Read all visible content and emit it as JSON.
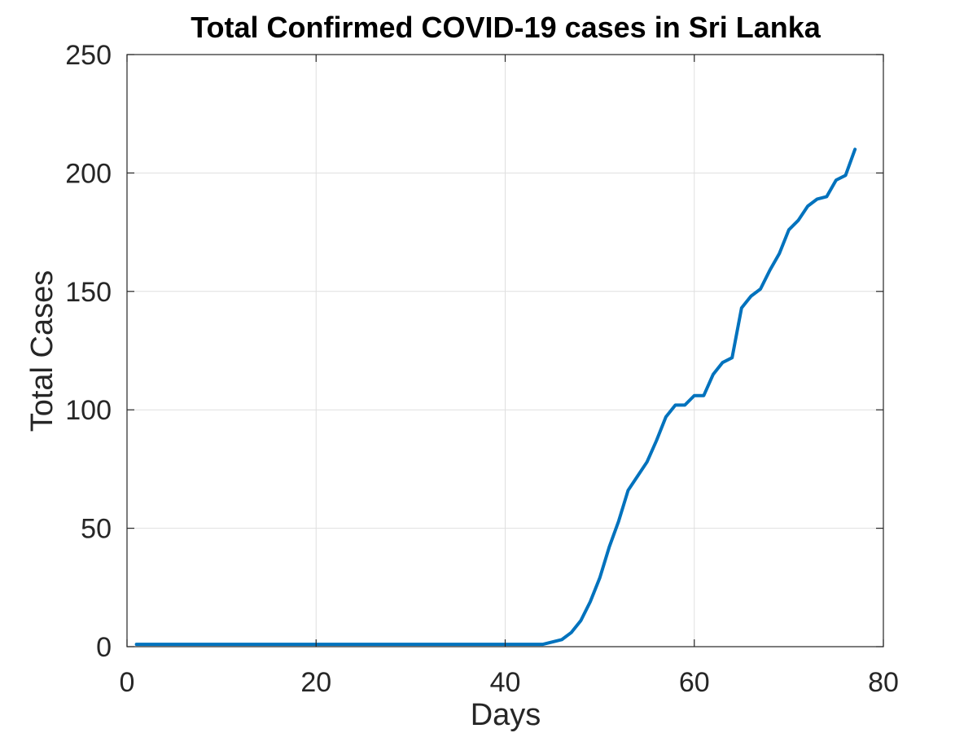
{
  "chart_data": {
    "type": "line",
    "title": "Total Confirmed COVID-19 cases in Sri Lanka",
    "xlabel": "Days",
    "ylabel": "Total Cases",
    "xlim": [
      0,
      80
    ],
    "ylim": [
      0,
      250
    ],
    "xticks": [
      0,
      20,
      40,
      60,
      80
    ],
    "yticks": [
      0,
      50,
      100,
      150,
      200,
      250
    ],
    "grid": true,
    "legend": "none",
    "series": [
      {
        "color": "#0072bd",
        "x": [
          1,
          2,
          3,
          4,
          5,
          6,
          7,
          8,
          9,
          10,
          11,
          12,
          13,
          14,
          15,
          16,
          17,
          18,
          19,
          20,
          21,
          22,
          23,
          24,
          25,
          26,
          27,
          28,
          29,
          30,
          31,
          32,
          33,
          34,
          35,
          36,
          37,
          38,
          39,
          40,
          41,
          42,
          43,
          44,
          45,
          46,
          47,
          48,
          49,
          50,
          51,
          52,
          53,
          54,
          55,
          56,
          57,
          58,
          59,
          60,
          61,
          62,
          63,
          64,
          65,
          66,
          67,
          68,
          69,
          70,
          71,
          72,
          73,
          74,
          75,
          76,
          77
        ],
        "y": [
          1,
          1,
          1,
          1,
          1,
          1,
          1,
          1,
          1,
          1,
          1,
          1,
          1,
          1,
          1,
          1,
          1,
          1,
          1,
          1,
          1,
          1,
          1,
          1,
          1,
          1,
          1,
          1,
          1,
          1,
          1,
          1,
          1,
          1,
          1,
          1,
          1,
          1,
          1,
          1,
          1,
          1,
          1,
          1,
          2,
          3,
          6,
          11,
          19,
          29,
          42,
          53,
          66,
          72,
          78,
          87,
          97,
          102,
          102,
          106,
          106,
          115,
          120,
          122,
          143,
          148,
          151,
          159,
          166,
          176,
          180,
          186,
          189,
          190,
          197,
          199,
          210
        ]
      }
    ]
  }
}
